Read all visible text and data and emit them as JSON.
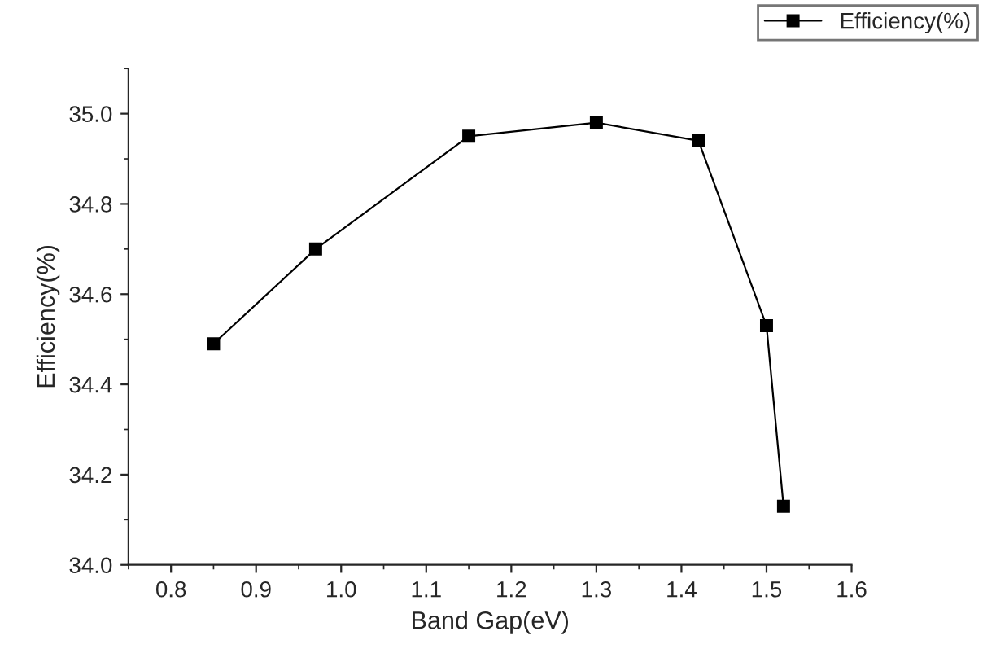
{
  "chart_data": {
    "type": "line",
    "xlabel": "Band Gap(eV)",
    "ylabel": "Efficiency(%)",
    "x": [
      0.85,
      0.97,
      1.15,
      1.3,
      1.42,
      1.5,
      1.52
    ],
    "series": [
      {
        "name": "Efficiency(%)",
        "color": "#000000",
        "values": [
          34.49,
          34.7,
          34.95,
          34.98,
          34.94,
          34.53,
          34.13
        ]
      }
    ],
    "xlim": [
      0.75,
      1.6
    ],
    "ylim": [
      34.0,
      35.1
    ],
    "xticks": [
      0.8,
      0.9,
      {
        "value": 1.0,
        "label": "1.0"
      },
      1.1,
      1.2,
      1.3,
      1.4,
      1.5,
      1.6
    ],
    "yticks": [
      {
        "value": 34.0,
        "label": "34.0"
      },
      34.2,
      34.4,
      34.6,
      34.8,
      {
        "value": 35.0,
        "label": "35.0"
      }
    ],
    "marker": "square",
    "line_style": "solid",
    "grid": false,
    "legend": "top right"
  }
}
